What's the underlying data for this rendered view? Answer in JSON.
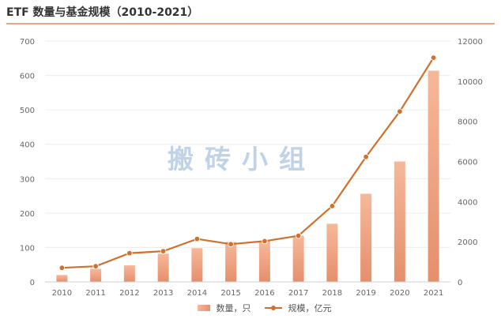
{
  "title": "ETF 数量与基金规模（2010-2021）",
  "watermark": "搬砖小组",
  "colors": {
    "bar_top": "#f6b89a",
    "bar_bottom": "#e58f6c",
    "line": "#d0702c",
    "title_rule": "#e8a87a",
    "grid": "#ececec",
    "tick_text": "#666666"
  },
  "chart_data": {
    "type": "bar+line",
    "title": "ETF 数量与基金规模（2010-2021）",
    "categories": [
      "2010",
      "2011",
      "2012",
      "2013",
      "2014",
      "2015",
      "2016",
      "2017",
      "2018",
      "2019",
      "2020",
      "2021"
    ],
    "series": [
      {
        "name": "数量，只",
        "type": "bar",
        "axis": "left",
        "values": [
          20,
          38,
          48,
          82,
          98,
          116,
          119,
          134,
          169,
          256,
          350,
          614
        ]
      },
      {
        "name": "规模，亿元",
        "type": "line",
        "axis": "right",
        "values": [
          700,
          780,
          1430,
          1530,
          2140,
          1880,
          2030,
          2300,
          3780,
          6230,
          8490,
          11170
        ]
      }
    ],
    "left_axis": {
      "ylim": [
        0,
        700
      ],
      "ticks": [
        "0",
        "100",
        "200",
        "300",
        "400",
        "500",
        "600",
        "700"
      ]
    },
    "right_axis": {
      "ylim": [
        0,
        12000
      ],
      "ticks": [
        "0",
        "2000",
        "4000",
        "6000",
        "8000",
        "10000",
        "12000"
      ]
    },
    "grid": true,
    "legend_position": "bottom-center"
  }
}
